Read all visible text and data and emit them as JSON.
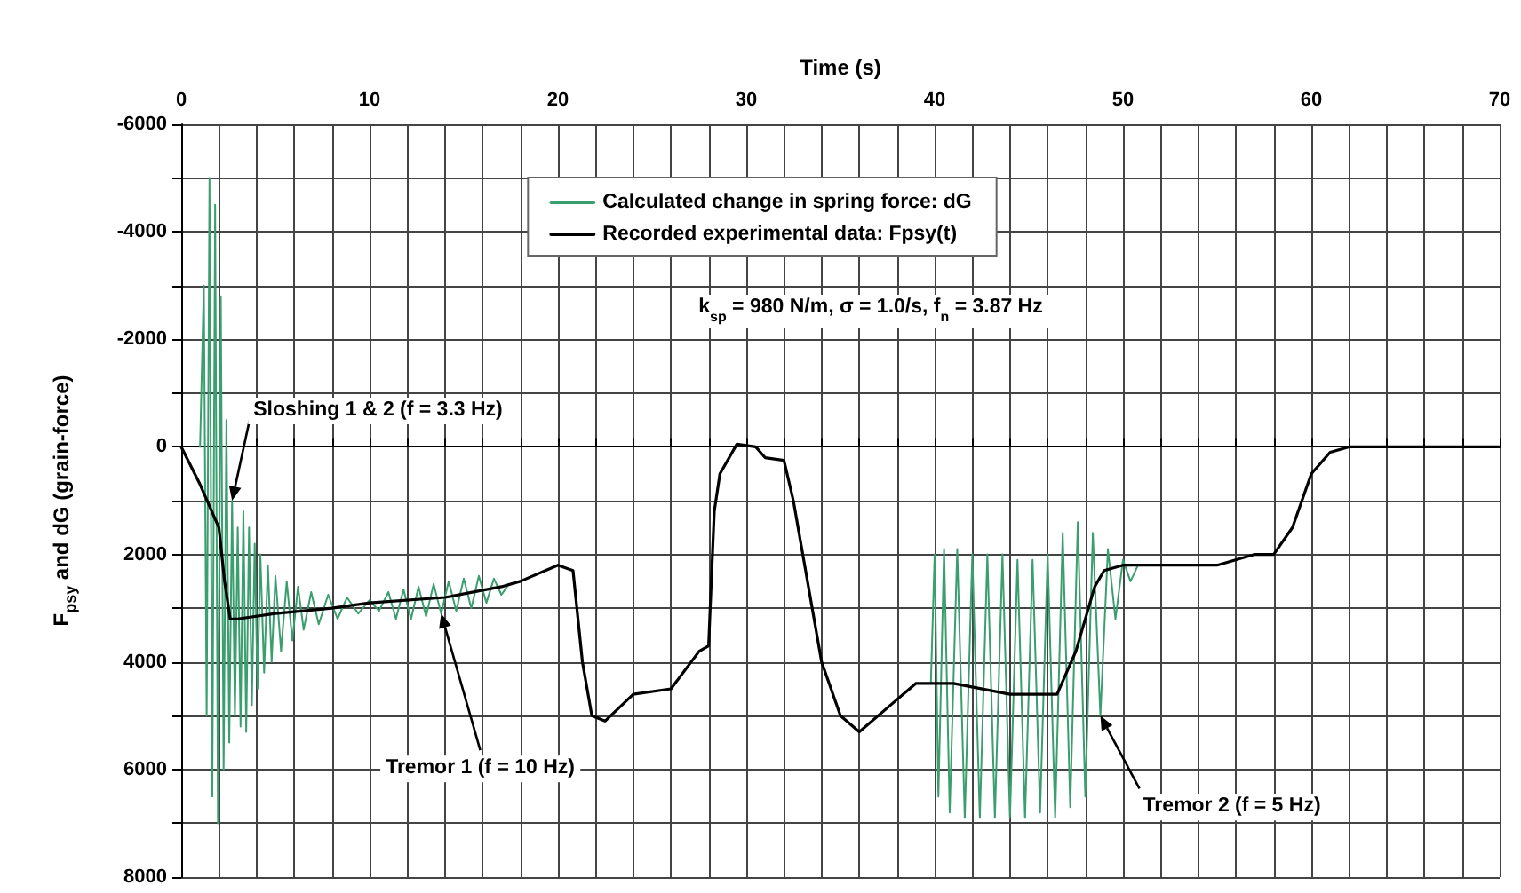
{
  "chart_data": {
    "type": "line",
    "xlabel": "Time (s)",
    "ylabel": "F$_{psy}$ and dG (grain-force)",
    "xlim": [
      0,
      70
    ],
    "ylim": [
      8000,
      -6000
    ],
    "xticks": [
      0,
      {
        "value": 2,
        "label": null
      },
      {
        "value": 4,
        "label": null
      },
      {
        "value": 6,
        "label": null
      },
      {
        "value": 8,
        "label": null
      },
      10,
      {
        "value": 12,
        "label": null
      },
      {
        "value": 14,
        "label": null
      },
      {
        "value": 16,
        "label": null
      },
      {
        "value": 18,
        "label": null
      },
      20,
      {
        "value": 22,
        "label": null
      },
      {
        "value": 24,
        "label": null
      },
      {
        "value": 26,
        "label": null
      },
      {
        "value": 28,
        "label": null
      },
      30,
      {
        "value": 32,
        "label": null
      },
      {
        "value": 34,
        "label": null
      },
      {
        "value": 36,
        "label": null
      },
      {
        "value": 38,
        "label": null
      },
      40,
      {
        "value": 42,
        "label": null
      },
      {
        "value": 44,
        "label": null
      },
      {
        "value": 46,
        "label": null
      },
      {
        "value": 48,
        "label": null
      },
      50,
      {
        "value": 52,
        "label": null
      },
      {
        "value": 54,
        "label": null
      },
      {
        "value": 56,
        "label": null
      },
      {
        "value": 58,
        "label": null
      },
      60,
      {
        "value": 62,
        "label": null
      },
      {
        "value": 64,
        "label": null
      },
      {
        "value": 66,
        "label": null
      },
      {
        "value": 68,
        "label": null
      },
      70
    ],
    "yticks": [
      -6000,
      {
        "value": -5000,
        "label": null
      },
      -4000,
      {
        "value": -3000,
        "label": null
      },
      -2000,
      {
        "value": -1000,
        "label": null
      },
      0,
      {
        "value": 1000,
        "label": null
      },
      2000,
      {
        "value": 3000,
        "label": null
      },
      4000,
      {
        "value": 5000,
        "label": null
      },
      6000,
      {
        "value": 7000,
        "label": null
      },
      8000
    ],
    "grid": true,
    "legend": "top",
    "marker": "none",
    "line_style": "solid",
    "series": [
      {
        "name": "Calculated change in spring force: dG",
        "color": "#3a9e6e",
        "x": [
          1.0,
          1.2,
          1.35,
          1.5,
          1.65,
          1.8,
          1.95,
          2.1,
          2.25,
          2.4,
          2.55,
          2.7,
          2.85,
          3.0,
          3.15,
          3.3,
          3.45,
          3.6,
          3.75,
          3.9,
          4.05,
          4.2,
          4.4,
          4.6,
          4.8,
          5.0,
          5.3,
          5.6,
          5.9,
          6.2,
          6.5,
          6.9,
          7.3,
          7.8,
          8.3,
          8.8,
          9.4,
          10.0,
          10.5,
          11.0,
          11.4,
          11.8,
          12.2,
          12.6,
          13.0,
          13.4,
          13.8,
          14.2,
          14.6,
          15.0,
          15.4,
          15.8,
          16.2,
          16.6,
          17.0,
          17.4,
          28,
          39.8,
          40.0,
          40.2,
          40.5,
          40.8,
          41.2,
          41.6,
          42.0,
          42.4,
          42.8,
          43.2,
          43.6,
          44.0,
          44.4,
          44.8,
          45.2,
          45.6,
          46.0,
          46.4,
          46.8,
          47.2,
          47.6,
          48.0,
          48.4,
          48.8,
          49.2,
          49.6,
          50.0,
          50.4,
          50.8
        ],
        "values": [
          0,
          -3000,
          5000,
          -5000,
          6500,
          -4500,
          7000,
          -2800,
          6000,
          -500,
          5500,
          1000,
          5000,
          1500,
          5200,
          1200,
          5300,
          1500,
          4800,
          1800,
          4500,
          2000,
          4200,
          2200,
          4000,
          2400,
          3800,
          2500,
          3600,
          2600,
          3400,
          2700,
          3300,
          2750,
          3200,
          2800,
          3100,
          2850,
          3050,
          2700,
          3200,
          2650,
          3200,
          2600,
          3150,
          2550,
          3100,
          2500,
          3050,
          2450,
          3000,
          2400,
          2900,
          2450,
          2750,
          2550,
          null,
          4400,
          2000,
          6500,
          1900,
          6800,
          1900,
          6900,
          2000,
          6900,
          2000,
          6900,
          2000,
          6900,
          2100,
          6900,
          2100,
          6800,
          2000,
          6900,
          1600,
          6700,
          1400,
          6500,
          1600,
          5000,
          1900,
          3200,
          2100,
          2500,
          2200
        ]
      },
      {
        "name": "Recorded experimental data: Fpsy(t)",
        "color": "#000000",
        "x": [
          0,
          1,
          2,
          2.3,
          2.6,
          3,
          5,
          8,
          10,
          14,
          17,
          18,
          20,
          20.8,
          21.3,
          21.8,
          22.5,
          24,
          26,
          27.5,
          28,
          28.3,
          28.6,
          29.5,
          30.5,
          31,
          32,
          32.5,
          34,
          35,
          36,
          38,
          39,
          41,
          44,
          46.5,
          47.5,
          48.5,
          49,
          50,
          52,
          55,
          57,
          58,
          59,
          60,
          61,
          62,
          70
        ],
        "values": [
          0,
          700,
          1500,
          2500,
          3200,
          3200,
          3100,
          3000,
          2900,
          2800,
          2600,
          2500,
          2200,
          2300,
          4000,
          5000,
          5100,
          4600,
          4500,
          3800,
          3700,
          1200,
          500,
          -50,
          0,
          200,
          250,
          1000,
          4000,
          5000,
          5300,
          4700,
          4400,
          4400,
          4600,
          4600,
          3800,
          2600,
          2300,
          2200,
          2200,
          2200,
          2000,
          2000,
          1500,
          500,
          100,
          0,
          0
        ]
      }
    ],
    "annotations": [
      "k$_{sp}$ = 980 N/m, σ = 1.0/s,  f$_{n}$ = 3.87 Hz",
      {
        "text": "Sloshing 1 & 2 (f = 3.3 Hz)",
        "x": 2.7,
        "y": 1000
      },
      {
        "text": "Tremor 1 (f = 10 Hz)",
        "x": 13.8,
        "y": 3100
      },
      {
        "text": "Tremor 2 (f = 5 Hz)",
        "x": 48.8,
        "y": 5000
      }
    ]
  }
}
